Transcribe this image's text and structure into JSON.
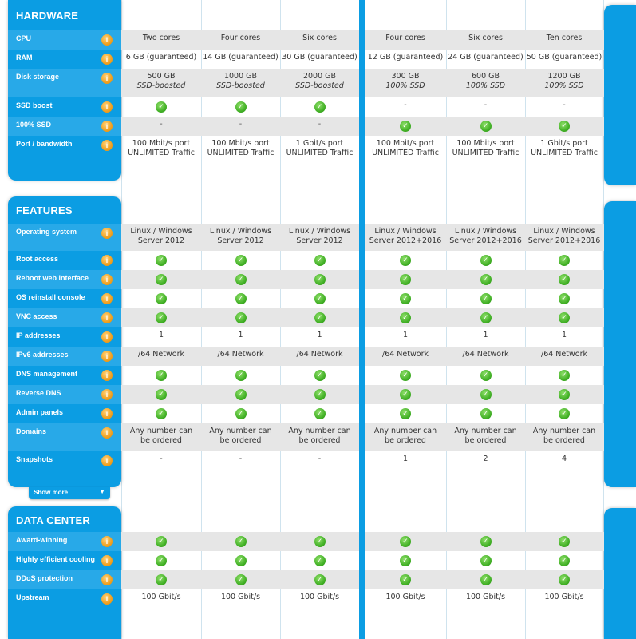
{
  "sections": {
    "hardware": "HARDWARE",
    "features": "FEATURES",
    "datacenter": "DATA CENTER"
  },
  "show_more": "Show more",
  "icons": {
    "info": "info-icon",
    "check": "check-icon"
  },
  "colors": {
    "accent": "#0b9de3",
    "check": "#3fae23",
    "info": "#f0a020"
  },
  "hardware_rows": [
    {
      "label": "CPU",
      "cells": [
        [
          "Two cores"
        ],
        [
          "Four cores"
        ],
        [
          "Six cores"
        ],
        [
          "Four cores"
        ],
        [
          "Six cores"
        ],
        [
          "Ten cores"
        ]
      ]
    },
    {
      "label": "RAM",
      "cells": [
        [
          "6 GB (guaranteed)"
        ],
        [
          "14 GB (guaranteed)"
        ],
        [
          "30 GB (guaranteed)"
        ],
        [
          "12 GB (guaranteed)"
        ],
        [
          "24 GB (guaranteed)"
        ],
        [
          "50 GB (guaranteed)"
        ]
      ]
    },
    {
      "label": "Disk storage",
      "cells": [
        [
          "500 GB",
          "SSD-boosted"
        ],
        [
          "1000 GB",
          "SSD-boosted"
        ],
        [
          "2000 GB",
          "SSD-boosted"
        ],
        [
          "300 GB",
          "100% SSD"
        ],
        [
          "600 GB",
          "100% SSD"
        ],
        [
          "1200 GB",
          "100% SSD"
        ]
      ]
    },
    {
      "label": "SSD boost",
      "cells": [
        "check",
        "check",
        "check",
        "-",
        "-",
        "-"
      ]
    },
    {
      "label": "100% SSD",
      "cells": [
        "-",
        "-",
        "-",
        "check",
        "check",
        "check"
      ]
    },
    {
      "label": "Port / bandwidth",
      "cells": [
        [
          "100 Mbit/s port",
          "UNLIMITED Traffic"
        ],
        [
          "100 Mbit/s port",
          "UNLIMITED Traffic"
        ],
        [
          "1 Gbit/s port",
          "UNLIMITED Traffic"
        ],
        [
          "100 Mbit/s port",
          "UNLIMITED Traffic"
        ],
        [
          "100 Mbit/s port",
          "UNLIMITED Traffic"
        ],
        [
          "1 Gbit/s port",
          "UNLIMITED Traffic"
        ]
      ]
    }
  ],
  "feature_rows": [
    {
      "label": "Operating system",
      "cells": [
        [
          "Linux / Windows",
          "Server 2012"
        ],
        [
          "Linux / Windows",
          "Server 2012"
        ],
        [
          "Linux / Windows",
          "Server 2012"
        ],
        [
          "Linux / Windows",
          "Server 2012+2016"
        ],
        [
          "Linux / Windows",
          "Server 2012+2016"
        ],
        [
          "Linux / Windows",
          "Server 2012+2016"
        ]
      ]
    },
    {
      "label": "Root access",
      "cells": [
        "check",
        "check",
        "check",
        "check",
        "check",
        "check"
      ]
    },
    {
      "label": "Reboot web interface",
      "cells": [
        "check",
        "check",
        "check",
        "check",
        "check",
        "check"
      ]
    },
    {
      "label": "OS reinstall console",
      "cells": [
        "check",
        "check",
        "check",
        "check",
        "check",
        "check"
      ]
    },
    {
      "label": "VNC access",
      "cells": [
        "check",
        "check",
        "check",
        "check",
        "check",
        "check"
      ]
    },
    {
      "label": "IP addresses",
      "cells": [
        [
          "1"
        ],
        [
          "1"
        ],
        [
          "1"
        ],
        [
          "1"
        ],
        [
          "1"
        ],
        [
          "1"
        ]
      ]
    },
    {
      "label": "IPv6 addresses",
      "cells": [
        [
          "/64 Network"
        ],
        [
          "/64 Network"
        ],
        [
          "/64 Network"
        ],
        [
          "/64 Network"
        ],
        [
          "/64 Network"
        ],
        [
          "/64 Network"
        ]
      ]
    },
    {
      "label": "DNS management",
      "cells": [
        "check",
        "check",
        "check",
        "check",
        "check",
        "check"
      ]
    },
    {
      "label": "Reverse DNS",
      "cells": [
        "check",
        "check",
        "check",
        "check",
        "check",
        "check"
      ]
    },
    {
      "label": "Admin panels",
      "cells": [
        "check",
        "check",
        "check",
        "check",
        "check",
        "check"
      ]
    },
    {
      "label": "Domains",
      "cells": [
        [
          "Any number can",
          "be ordered"
        ],
        [
          "Any number can",
          "be ordered"
        ],
        [
          "Any number can",
          "be ordered"
        ],
        [
          "Any number can",
          "be ordered"
        ],
        [
          "Any number can",
          "be ordered"
        ],
        [
          "Any number can",
          "be ordered"
        ]
      ]
    },
    {
      "label": "Snapshots",
      "cells": [
        "-",
        "-",
        "-",
        [
          "1"
        ],
        [
          "2"
        ],
        [
          "4"
        ]
      ]
    }
  ],
  "datacenter_rows": [
    {
      "label": "Award-winning",
      "cells": [
        "check",
        "check",
        "check",
        "check",
        "check",
        "check"
      ]
    },
    {
      "label": "Highly efficient cooling",
      "cells": [
        "check",
        "check",
        "check",
        "check",
        "check",
        "check"
      ]
    },
    {
      "label": "DDoS protection",
      "cells": [
        "check",
        "check",
        "check",
        "check",
        "check",
        "check"
      ]
    },
    {
      "label": "Upstream",
      "cells": [
        [
          "100 Gbit/s"
        ],
        [
          "100 Gbit/s"
        ],
        [
          "100 Gbit/s"
        ],
        [
          "100 Gbit/s"
        ],
        [
          "100 Gbit/s"
        ],
        [
          "100 Gbit/s"
        ]
      ]
    }
  ]
}
